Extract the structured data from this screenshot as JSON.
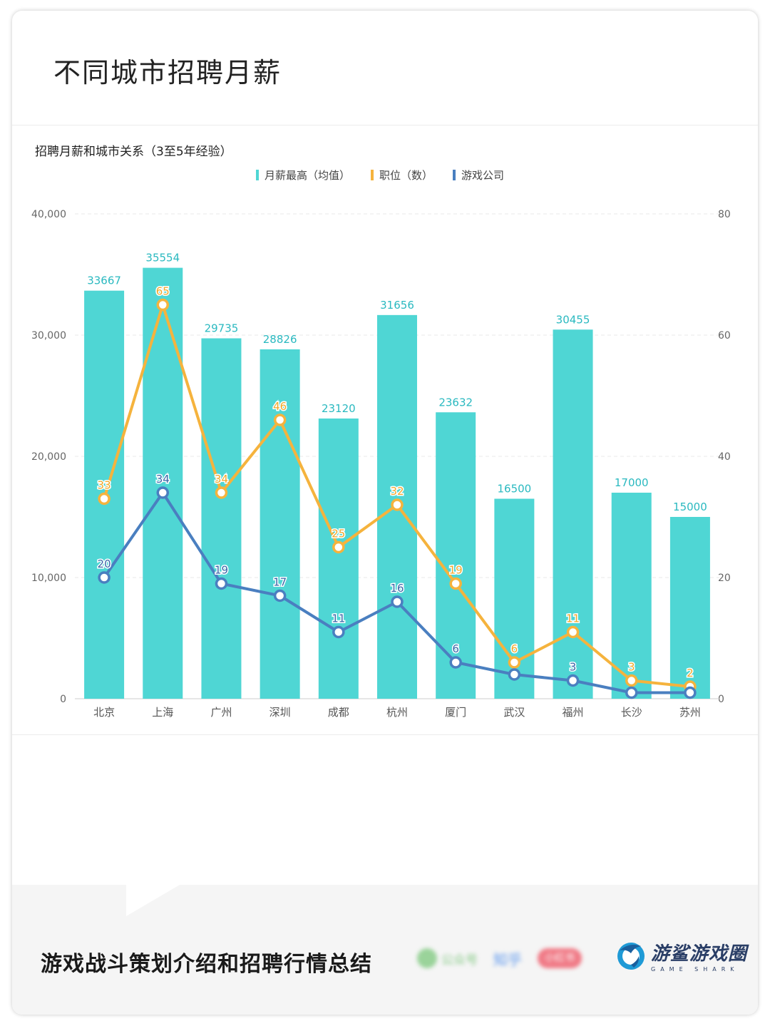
{
  "page": {
    "title": "不同城市招聘月薪",
    "footer_title": "游戏战斗策划介绍和招聘行情总结",
    "footer_blurred": [
      "公众号",
      "知乎",
      "小红书"
    ],
    "brand": {
      "name": "游鲨游戏圈",
      "sub": "GAME SHARK",
      "icon": "shark-logo-icon"
    }
  },
  "colors": {
    "bar": "#4fd6d4",
    "positions": "#f5b33d",
    "companies": "#4a7fc0",
    "grid": "#e8e8e8",
    "axis_text": "#666666"
  },
  "chart_data": {
    "type": "bar",
    "title": "招聘月薪和城市关系（3至5年经验）",
    "categories": [
      "北京",
      "上海",
      "广州",
      "深圳",
      "成都",
      "杭州",
      "厦门",
      "武汉",
      "福州",
      "长沙",
      "苏州"
    ],
    "series": [
      {
        "name": "月薪最高（均值）",
        "type": "bar",
        "axis": "left",
        "values": [
          33667,
          35554,
          29735,
          28826,
          23120,
          31656,
          23632,
          16500,
          30455,
          17000,
          15000
        ]
      },
      {
        "name": "职位（数）",
        "type": "line",
        "axis": "right",
        "values": [
          33,
          65,
          34,
          46,
          25,
          32,
          19,
          6,
          11,
          3,
          2
        ]
      },
      {
        "name": "游戏公司",
        "type": "line",
        "axis": "right",
        "values": [
          20,
          34,
          19,
          17,
          11,
          16,
          6,
          4,
          3,
          1,
          1
        ],
        "labels": [
          "20",
          "34",
          "19",
          "17",
          "11",
          "16",
          "6",
          "",
          "3",
          "",
          ""
        ]
      }
    ],
    "y_left": {
      "min": 0,
      "max": 40000,
      "ticks": [
        "0",
        "10,000",
        "20,000",
        "30,000",
        "40,000"
      ]
    },
    "y_right": {
      "min": 0,
      "max": 80,
      "ticks": [
        "0",
        "20",
        "40",
        "60",
        "80"
      ]
    },
    "grid": true,
    "legend_position": "top-center"
  }
}
